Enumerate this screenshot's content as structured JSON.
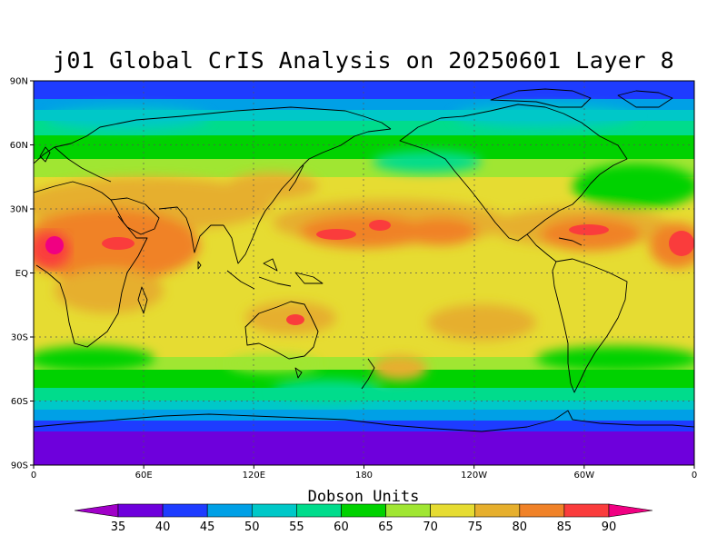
{
  "title": "j01 Global CrIS Analysis on 20250601 Layer 8",
  "map": {
    "lat_ticks": [
      "90N",
      "60N",
      "30N",
      "EQ",
      "30S",
      "60S",
      "90S"
    ],
    "lon_ticks": [
      "0",
      "60E",
      "120E",
      "180",
      "120W",
      "60W",
      "0"
    ],
    "gridlines": "dotted"
  },
  "colorbar": {
    "title": "Dobson Units",
    "levels": [
      "35",
      "40",
      "45",
      "50",
      "55",
      "60",
      "65",
      "70",
      "75",
      "80",
      "85",
      "90"
    ],
    "colors": [
      "#a000c8",
      "#6e00dc",
      "#1e3cff",
      "#00a0e6",
      "#00c8c8",
      "#00dc8c",
      "#00d200",
      "#a0e632",
      "#e6dc32",
      "#e6af2d",
      "#f08228",
      "#fa3c3c",
      "#f00082"
    ]
  }
}
